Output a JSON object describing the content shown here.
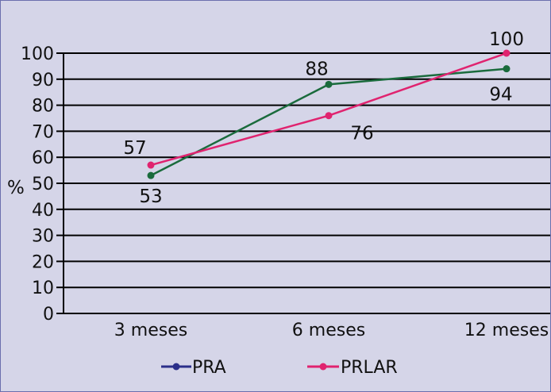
{
  "chart_data": {
    "type": "line",
    "title": "",
    "xlabel": "",
    "ylabel": "%",
    "categories": [
      "3 meses",
      "6 meses",
      "12 meses"
    ],
    "ylim": [
      0,
      100
    ],
    "yticks": [
      0,
      10,
      20,
      30,
      40,
      50,
      60,
      70,
      80,
      90,
      100
    ],
    "grid": true,
    "legend_position": "bottom",
    "series": [
      {
        "name": "PRA",
        "legend_color": "#2b2f8a",
        "color": "#1a6b3c",
        "values": [
          53,
          88,
          94
        ],
        "labels": [
          "53",
          "88",
          "94"
        ]
      },
      {
        "name": "PRLAR",
        "legend_color": "#e0236f",
        "color": "#e0236f",
        "values": [
          57,
          76,
          100
        ],
        "labels": [
          "57",
          "76",
          "100"
        ]
      }
    ]
  }
}
